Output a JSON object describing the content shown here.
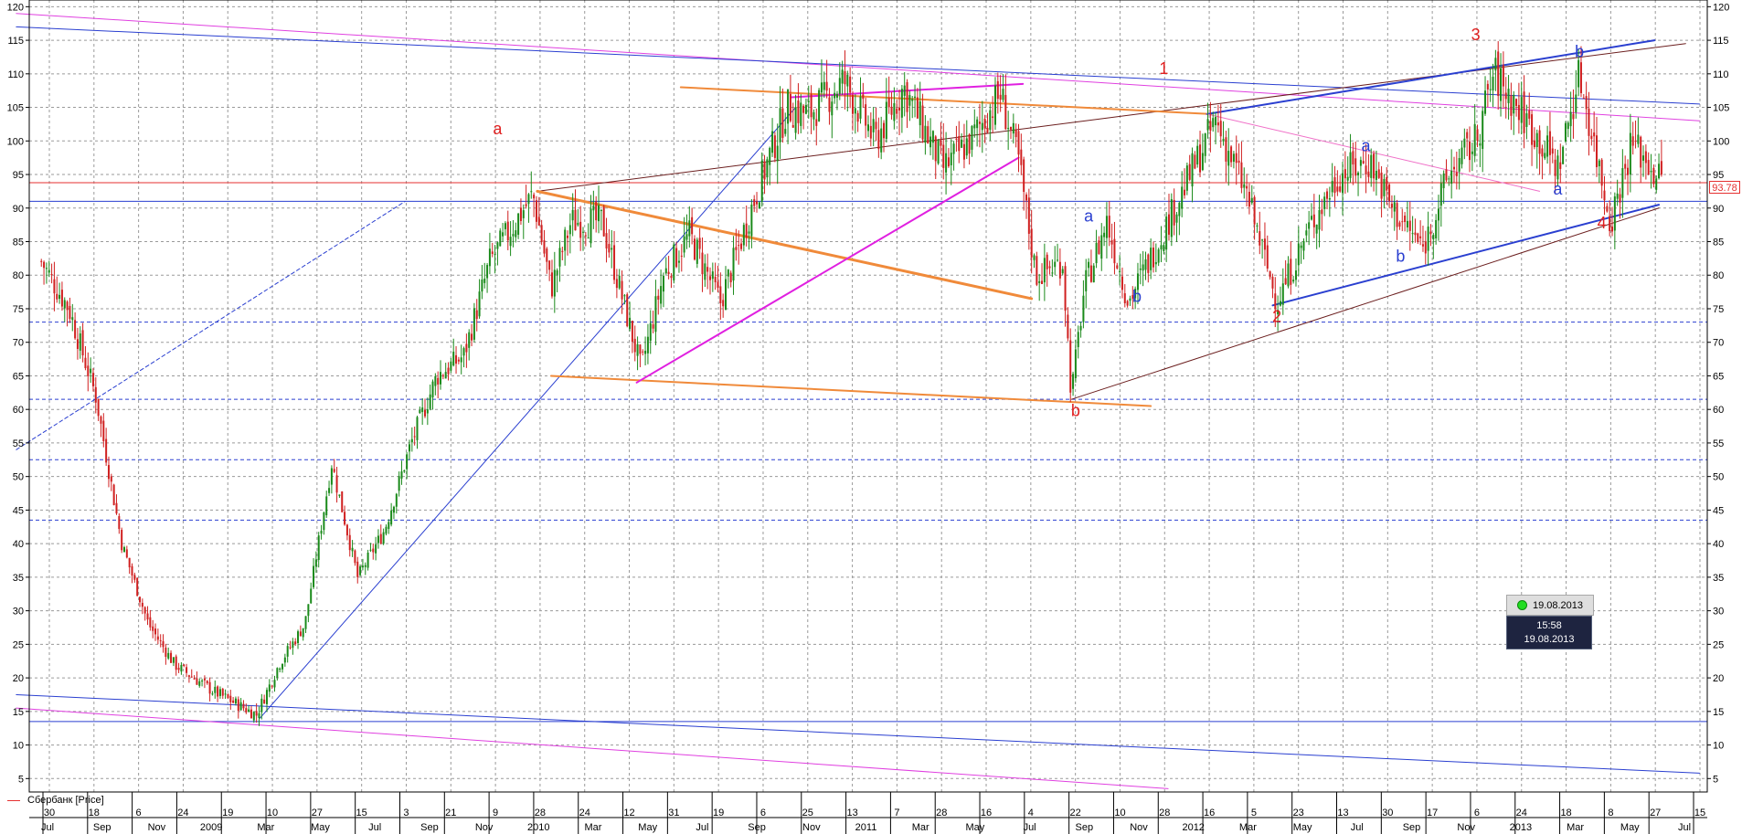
{
  "chart_data": {
    "type": "candlestick",
    "title": "",
    "instrument": "Сбербанк [Price]",
    "legend": [
      {
        "name": "Сбербанк [Price]",
        "color": "#e53030"
      }
    ],
    "last_price": "93.78",
    "ylim": [
      3,
      121
    ],
    "yticks": [
      5,
      10,
      15,
      20,
      25,
      30,
      35,
      40,
      45,
      50,
      55,
      60,
      65,
      70,
      75,
      80,
      85,
      90,
      95,
      100,
      105,
      110,
      115,
      120
    ],
    "x_top_labels": [
      "30",
      "18",
      "6",
      "24",
      "19",
      "10",
      "27",
      "15",
      "3",
      "21",
      "9",
      "28",
      "24",
      "12",
      "31",
      "19",
      "6",
      "25",
      "13",
      "7",
      "28",
      "16",
      "4",
      "22",
      "10",
      "28",
      "16",
      "5",
      "23",
      "13",
      "30",
      "17",
      "6",
      "24",
      "18",
      "8",
      "27",
      "15"
    ],
    "x_bottom_labels": [
      "Jul",
      "Sep",
      "Nov",
      "2009",
      "Mar",
      "May",
      "Jul",
      "Sep",
      "Nov",
      "2010",
      "Mar",
      "May",
      "Jul",
      "Sep",
      "Nov",
      "2011",
      "Mar",
      "May",
      "Jul",
      "Sep",
      "Nov",
      "2012",
      "Mar",
      "May",
      "Jul",
      "Sep",
      "Nov",
      "2013",
      "Mar",
      "May",
      "Jul"
    ],
    "price_path": [
      [
        "2008-06-30",
        82
      ],
      [
        "2008-08-01",
        75
      ],
      [
        "2008-09-01",
        62
      ],
      [
        "2008-10-01",
        40
      ],
      [
        "2008-11-01",
        28
      ],
      [
        "2008-12-01",
        22
      ],
      [
        "2009-01-15",
        18
      ],
      [
        "2009-03-06",
        14.5
      ],
      [
        "2009-04-01",
        22
      ],
      [
        "2009-05-01",
        28
      ],
      [
        "2009-06-01",
        52
      ],
      [
        "2009-07-01",
        35
      ],
      [
        "2009-08-01",
        42
      ],
      [
        "2009-09-01",
        55
      ],
      [
        "2009-10-01",
        65
      ],
      [
        "2009-11-01",
        68
      ],
      [
        "2009-12-01",
        82
      ],
      [
        "2010-01-20",
        92
      ],
      [
        "2010-02-10",
        78
      ],
      [
        "2010-03-05",
        88
      ],
      [
        "2010-04-10",
        88
      ],
      [
        "2010-05-25",
        66
      ],
      [
        "2010-06-20",
        80
      ],
      [
        "2010-07-20",
        86
      ],
      [
        "2010-08-25",
        76
      ],
      [
        "2010-10-05",
        92
      ],
      [
        "2010-11-10",
        105
      ],
      [
        "2010-12-05",
        104
      ],
      [
        "2011-01-15",
        109
      ],
      [
        "2011-02-20",
        100
      ],
      [
        "2011-03-25",
        108
      ],
      [
        "2011-05-10",
        96
      ],
      [
        "2011-06-10",
        100
      ],
      [
        "2011-07-15",
        107
      ],
      [
        "2011-08-05",
        97
      ],
      [
        "2011-08-25",
        80
      ],
      [
        "2011-09-25",
        82
      ],
      [
        "2011-10-05",
        62
      ],
      [
        "2011-10-20",
        78
      ],
      [
        "2011-11-15",
        88
      ],
      [
        "2011-12-10",
        76
      ],
      [
        "2012-01-10",
        84
      ],
      [
        "2012-02-20",
        95
      ],
      [
        "2012-03-20",
        103
      ],
      [
        "2012-04-25",
        92
      ],
      [
        "2012-05-30",
        76
      ],
      [
        "2012-07-10",
        88
      ],
      [
        "2012-08-10",
        95
      ],
      [
        "2012-09-15",
        97
      ],
      [
        "2012-10-10",
        90
      ],
      [
        "2012-11-15",
        84
      ],
      [
        "2012-12-15",
        95
      ],
      [
        "2013-01-15",
        100
      ],
      [
        "2013-02-05",
        110
      ],
      [
        "2013-03-10",
        104
      ],
      [
        "2013-04-20",
        96
      ],
      [
        "2013-05-15",
        110
      ],
      [
        "2013-06-20",
        88
      ],
      [
        "2013-07-15",
        100
      ],
      [
        "2013-08-19",
        93.78
      ]
    ],
    "levels": [
      {
        "price": 93.78,
        "color": "#e53030",
        "style": "solid"
      },
      {
        "price": 91.0,
        "color": "#2a3fd0",
        "style": "solid"
      },
      {
        "price": 73.0,
        "color": "#2a3fd0",
        "style": "dashed"
      },
      {
        "price": 61.5,
        "color": "#2a3fd0",
        "style": "dashed"
      },
      {
        "price": 52.5,
        "color": "#2a3fd0",
        "style": "dashed"
      },
      {
        "price": 43.5,
        "color": "#2a3fd0",
        "style": "dashed"
      },
      {
        "price": 13.5,
        "color": "#2a3fd0",
        "style": "solid"
      }
    ],
    "trendlines": [
      {
        "from": [
          "2008-06-01",
          119
        ],
        "to": [
          "2013-10-01",
          103
        ],
        "color": "#e040e0"
      },
      {
        "from": [
          "2008-06-01",
          117
        ],
        "to": [
          "2013-10-01",
          105.5
        ],
        "color": "#2a3fd0"
      },
      {
        "from": [
          "2008-06-01",
          15.5
        ],
        "to": [
          "2012-01-25",
          3.5
        ],
        "color": "#e040e0"
      },
      {
        "from": [
          "2008-06-01",
          17.5
        ],
        "to": [
          "2013-10-01",
          5.8
        ],
        "color": "#2a3fd0"
      },
      {
        "from": [
          "2009-03-10",
          14
        ],
        "to": [
          "2010-11-20",
          105
        ],
        "color": "#2a3fd0"
      },
      {
        "from": [
          "2008-06-01",
          54
        ],
        "to": [
          "2009-08-25",
          91
        ],
        "color": "#2a3fd0",
        "style": "dashed"
      },
      {
        "from": [
          "2010-01-25",
          92.5
        ],
        "to": [
          "2013-09-15",
          114.5
        ],
        "color": "#6b1e1e"
      },
      {
        "from": [
          "2011-10-05",
          61.5
        ],
        "to": [
          "2013-08-15",
          90
        ],
        "color": "#6b1e1e"
      },
      {
        "from": [
          "2010-01-25",
          92.5
        ],
        "to": [
          "2011-08-20",
          76.5
        ],
        "color": "#f08a3a",
        "width": 3
      },
      {
        "from": [
          "2010-02-10",
          65
        ],
        "to": [
          "2012-01-05",
          60.5
        ],
        "color": "#f08a3a",
        "width": 2
      },
      {
        "from": [
          "2010-05-20",
          64
        ],
        "to": [
          "2011-08-05",
          97.5
        ],
        "color": "#e020e0",
        "width": 2
      },
      {
        "from": [
          "2010-07-10",
          108
        ],
        "to": [
          "2012-03-15",
          104
        ],
        "color": "#f08a3a",
        "width": 2
      },
      {
        "from": [
          "2010-11-15",
          106.5
        ],
        "to": [
          "2011-08-10",
          108.5
        ],
        "color": "#e020e0",
        "width": 2
      },
      {
        "from": [
          "2012-03-10",
          104
        ],
        "to": [
          "2013-08-10",
          115
        ],
        "color": "#2a3fd0",
        "width": 2
      },
      {
        "from": [
          "2012-05-25",
          75.5
        ],
        "to": [
          "2013-08-15",
          90.5
        ],
        "color": "#2a3fd0",
        "width": 2
      },
      {
        "from": [
          "2012-03-10",
          104
        ],
        "to": [
          "2013-03-30",
          92.5
        ],
        "color": "#f070c8"
      }
    ],
    "annotations": [
      {
        "text": "a",
        "date": "2009-12-10",
        "price": 101,
        "color": "#e02020"
      },
      {
        "text": "b",
        "date": "2011-10-10",
        "price": 59,
        "color": "#e02020"
      },
      {
        "text": "1",
        "date": "2012-01-20",
        "price": 110,
        "color": "#e02020"
      },
      {
        "text": "2",
        "date": "2012-05-30",
        "price": 73,
        "color": "#e02020"
      },
      {
        "text": "3",
        "date": "2013-01-15",
        "price": 115,
        "color": "#e02020"
      },
      {
        "text": "4",
        "date": "2013-06-10",
        "price": 87,
        "color": "#e02020"
      },
      {
        "text": "a",
        "date": "2011-10-25",
        "price": 88,
        "color": "#2a3fd0"
      },
      {
        "text": "b",
        "date": "2011-12-20",
        "price": 76,
        "color": "#2a3fd0"
      },
      {
        "text": "a",
        "date": "2012-09-10",
        "price": 98.5,
        "color": "#2a3fd0"
      },
      {
        "text": "b",
        "date": "2012-10-20",
        "price": 82,
        "color": "#2a3fd0"
      },
      {
        "text": "a",
        "date": "2013-04-20",
        "price": 92,
        "color": "#2a3fd0"
      },
      {
        "text": "b",
        "date": "2013-05-15",
        "price": 112.5,
        "color": "#2a3fd0"
      }
    ]
  },
  "tooltip": {
    "date": "19.08.2013"
  },
  "cursor": {
    "time": "15:58",
    "date": "19.08.2013"
  }
}
